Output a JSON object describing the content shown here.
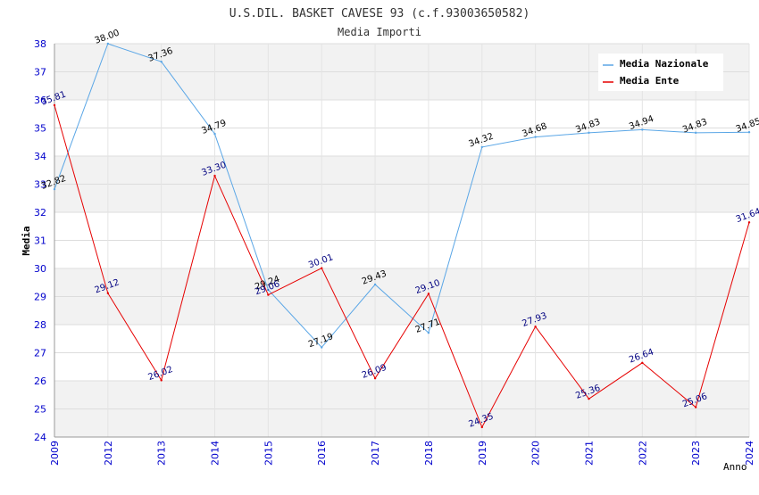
{
  "chart_data": {
    "type": "line",
    "title": "U.S.DIL. BASKET CAVESE 93 (c.f.93003650582)",
    "subtitle": "Media Importi",
    "xlabel": "Anno",
    "ylabel": "Media",
    "ylim": [
      24,
      38
    ],
    "yticks": [
      "24",
      "25",
      "26",
      "27",
      "28",
      "29",
      "30",
      "31",
      "32",
      "33",
      "34",
      "35",
      "36",
      "37",
      "38"
    ],
    "categories": [
      "2009",
      "2012",
      "2013",
      "2014",
      "2015",
      "2016",
      "2017",
      "2018",
      "2019",
      "2020",
      "2021",
      "2022",
      "2023",
      "2024"
    ],
    "legend_position": "top-right",
    "series": [
      {
        "name": "Media Nazionale",
        "color": "#5aa6e6",
        "label_color": "#000000",
        "values": [
          32.82,
          38.0,
          37.36,
          34.79,
          29.24,
          27.19,
          29.43,
          27.71,
          34.32,
          34.68,
          34.83,
          34.94,
          34.83,
          34.85
        ],
        "labels": [
          "32.82",
          "38.00",
          "37.36",
          "34.79",
          "29.24",
          "27.19",
          "29.43",
          "27.71",
          "34.32",
          "34.68",
          "34.83",
          "34.94",
          "34.83",
          "34.85"
        ]
      },
      {
        "name": "Media Ente",
        "color": "#e60000",
        "label_color": "#000080",
        "values": [
          35.81,
          29.12,
          26.02,
          33.3,
          29.06,
          30.01,
          26.09,
          29.1,
          24.35,
          27.93,
          25.36,
          26.64,
          25.06,
          31.64
        ],
        "labels": [
          "35.81",
          "29.12",
          "26.02",
          "33.30",
          "29.06",
          "30.01",
          "26.09",
          "29.10",
          "24.35",
          "27.93",
          "25.36",
          "26.64",
          "25.06",
          "31.64"
        ]
      }
    ]
  }
}
